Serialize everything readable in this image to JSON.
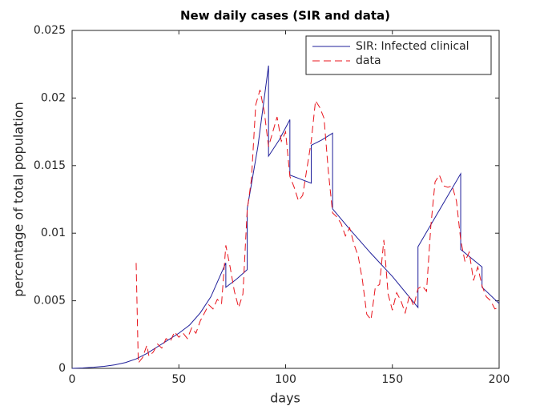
{
  "chart_data": {
    "type": "line",
    "title": "New daily cases (SIR and data)",
    "x_label": "days",
    "y_label": "percentage of total population",
    "xlim": [
      0,
      200
    ],
    "xticks": [
      0,
      50,
      100,
      150,
      200
    ],
    "ylim": [
      0,
      0.025
    ],
    "yticks": [
      0,
      0.005,
      0.01,
      0.015,
      0.02,
      0.025
    ],
    "legend": "top-right",
    "series": [
      {
        "name": "SIR: Infected clinical",
        "color": "#1f1f9a",
        "dash": "solid",
        "x": [
          0,
          5,
          10,
          15,
          20,
          25,
          30,
          35,
          40,
          45,
          50,
          55,
          60,
          65,
          72,
          72,
          77,
          82,
          82,
          87,
          92,
          92,
          97,
          102,
          102,
          107,
          112,
          112,
          117,
          122,
          122,
          130,
          140,
          150,
          162,
          162,
          172,
          182,
          182,
          192,
          192,
          200
        ],
        "values": [
          0,
          3e-05,
          8e-05,
          0.00015,
          0.00026,
          0.00043,
          0.0007,
          0.0011,
          0.0016,
          0.0021,
          0.0026,
          0.0032,
          0.0041,
          0.0053,
          0.0078,
          0.006,
          0.0066,
          0.0073,
          0.0118,
          0.0164,
          0.0224,
          0.0157,
          0.0169,
          0.0184,
          0.0143,
          0.014,
          0.0137,
          0.0165,
          0.0169,
          0.0174,
          0.0118,
          0.0103,
          0.0085,
          0.0068,
          0.0045,
          0.009,
          0.0117,
          0.0144,
          0.0088,
          0.0075,
          0.006,
          0.0048
        ]
      },
      {
        "name": "data",
        "color": "#e8141c",
        "dash": "dashed",
        "x": [
          30,
          31,
          33,
          35,
          36,
          38,
          40,
          42,
          44,
          46,
          48,
          50,
          52,
          54,
          56,
          58,
          60,
          62,
          64,
          66,
          68,
          70,
          72,
          74,
          76,
          78,
          80,
          82,
          84,
          86,
          88,
          90,
          92,
          94,
          96,
          98,
          100,
          102,
          104,
          106,
          108,
          110,
          112,
          114,
          116,
          118,
          120,
          122,
          124,
          126,
          128,
          130,
          132,
          134,
          136,
          138,
          140,
          142,
          144,
          146,
          148,
          150,
          152,
          154,
          156,
          158,
          160,
          162,
          164,
          166,
          168,
          170,
          172,
          174,
          176,
          178,
          180,
          182,
          184,
          186,
          188,
          190,
          192,
          194,
          196,
          198,
          200
        ],
        "values": [
          0.0078,
          0.0004,
          0.0008,
          0.0017,
          0.0009,
          0.0012,
          0.0018,
          0.0015,
          0.0022,
          0.002,
          0.0027,
          0.0023,
          0.0026,
          0.0022,
          0.003,
          0.0026,
          0.0035,
          0.0041,
          0.0047,
          0.0044,
          0.0051,
          0.0048,
          0.0091,
          0.0075,
          0.0057,
          0.0045,
          0.0055,
          0.0117,
          0.014,
          0.0195,
          0.0206,
          0.019,
          0.0164,
          0.0175,
          0.0186,
          0.0168,
          0.0175,
          0.0142,
          0.0134,
          0.0124,
          0.0128,
          0.0148,
          0.0168,
          0.0198,
          0.0193,
          0.0185,
          0.0146,
          0.0115,
          0.0112,
          0.0107,
          0.0098,
          0.0104,
          0.0092,
          0.0083,
          0.0065,
          0.004,
          0.0036,
          0.006,
          0.0062,
          0.0095,
          0.0055,
          0.0043,
          0.0056,
          0.005,
          0.0041,
          0.0054,
          0.0046,
          0.0059,
          0.0061,
          0.0057,
          0.0105,
          0.0138,
          0.0143,
          0.0135,
          0.0134,
          0.0135,
          0.0124,
          0.0095,
          0.0079,
          0.0086,
          0.0065,
          0.0075,
          0.0061,
          0.0053,
          0.005,
          0.0044,
          0.0045
        ]
      }
    ]
  }
}
